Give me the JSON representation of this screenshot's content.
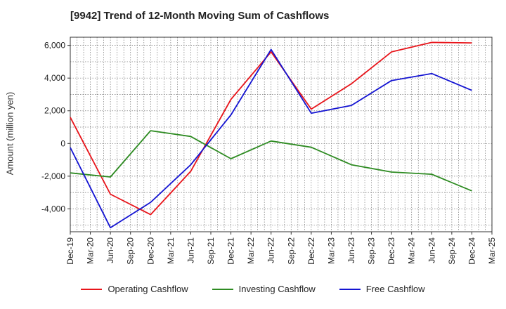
{
  "title": "[9942]  Trend of 12-Month Moving Sum of Cashflows",
  "colors": {
    "operating": "#e8151b",
    "investing": "#2e8b22",
    "free": "#1414d2"
  },
  "chart_data": {
    "type": "line",
    "title": "[9942]  Trend of 12-Month Moving Sum of Cashflows",
    "xlabel": "",
    "ylabel": "Amount (million yen)",
    "categories": [
      "Dec-19",
      "Mar-20",
      "Jun-20",
      "Sep-20",
      "Dec-20",
      "Mar-21",
      "Jun-21",
      "Sep-21",
      "Dec-21",
      "Mar-22",
      "Jun-22",
      "Sep-22",
      "Dec-22",
      "Mar-23",
      "Jun-23",
      "Sep-23",
      "Dec-23",
      "Mar-24",
      "Jun-24",
      "Sep-24",
      "Dec-24",
      "Mar-25"
    ],
    "ylim": [
      -5400,
      6500
    ],
    "yticks": [
      -4000,
      -2000,
      0,
      2000,
      4000,
      6000
    ],
    "ytick_labels": [
      "-4,000",
      "-2,000",
      "0",
      "2,000",
      "4,000",
      "6,000"
    ],
    "grid": true,
    "legend_position": "bottom",
    "series": [
      {
        "name": "Operating Cashflow",
        "color": "#e8151b",
        "values": [
          1600,
          null,
          -3100,
          null,
          -4350,
          null,
          -1700,
          null,
          2700,
          null,
          5600,
          null,
          2100,
          null,
          3650,
          null,
          5600,
          null,
          6180,
          null,
          6150,
          null
        ]
      },
      {
        "name": "Investing Cashflow",
        "color": "#2e8b22",
        "values": [
          -1800,
          null,
          -2050,
          null,
          780,
          null,
          430,
          null,
          -930,
          null,
          150,
          null,
          -230,
          null,
          -1300,
          null,
          -1750,
          null,
          -1880,
          null,
          -2900,
          null
        ]
      },
      {
        "name": "Free Cashflow",
        "color": "#1414d2",
        "values": [
          -250,
          null,
          -5150,
          null,
          -3600,
          null,
          -1300,
          null,
          1750,
          null,
          5750,
          null,
          1850,
          null,
          2330,
          null,
          3850,
          null,
          4280,
          null,
          3250,
          null
        ]
      }
    ]
  }
}
